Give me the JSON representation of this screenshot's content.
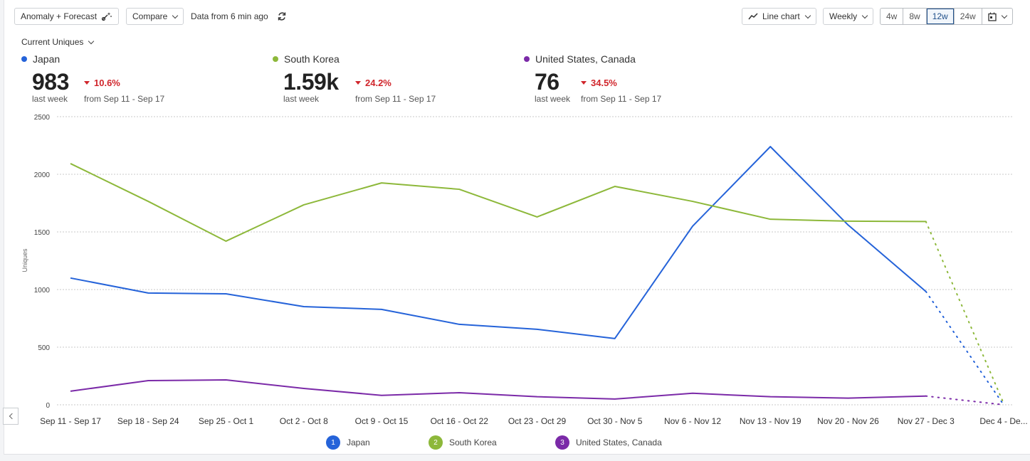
{
  "toolbar": {
    "anomaly_label": "Anomaly + Forecast",
    "anomaly_icon": "magic-wand-icon",
    "compare_label": "Compare",
    "data_status": "Data from 6 min ago",
    "refresh_icon": "refresh-icon",
    "chart_type_label": "Line chart",
    "chart_type_icon": "line-chart-icon",
    "interval_label": "Weekly",
    "ranges": [
      "4w",
      "8w",
      "12w",
      "24w"
    ],
    "active_range": "12w",
    "calendar_icon": "calendar-icon"
  },
  "metric_selector": {
    "label": "Current Uniques"
  },
  "kpis": [
    {
      "name": "Japan",
      "color": "#2563d9",
      "value": "983",
      "sub": "last week",
      "change": "10.6%",
      "direction": "down",
      "from": "from Sep 11 - Sep 17"
    },
    {
      "name": "South Korea",
      "color": "#8db83a",
      "value": "1.59k",
      "sub": "last week",
      "change": "24.2%",
      "direction": "down",
      "from": "from Sep 11 - Sep 17"
    },
    {
      "name": "United States, Canada",
      "color": "#7b2aa8",
      "value": "76",
      "sub": "last week",
      "change": "34.5%",
      "direction": "down",
      "from": "from Sep 11 - Sep 17"
    }
  ],
  "legend": [
    {
      "num": "1",
      "label": "Japan",
      "color": "#2563d9"
    },
    {
      "num": "2",
      "label": "South Korea",
      "color": "#8db83a"
    },
    {
      "num": "3",
      "label": "United States, Canada",
      "color": "#7b2aa8"
    }
  ],
  "chart_data": {
    "type": "line",
    "title": "",
    "xlabel": "",
    "ylabel": "Uniques",
    "ylim": [
      0,
      2500
    ],
    "yticks": [
      0,
      500,
      1000,
      1500,
      2000,
      2500
    ],
    "grid": true,
    "legend_position": "bottom",
    "categories": [
      "Sep 11 - Sep 17",
      "Sep 18 - Sep 24",
      "Sep 25 - Oct 1",
      "Oct 2 - Oct 8",
      "Oct 9 - Oct 15",
      "Oct 16 - Oct 22",
      "Oct 23 - Oct 29",
      "Oct 30 - Nov 5",
      "Nov 6 - Nov 12",
      "Nov 13 - Nov 19",
      "Nov 20 - Nov 26",
      "Nov 27 - Dec 3",
      "Dec 4 - De..."
    ],
    "incomplete_from_index": 11,
    "series": [
      {
        "name": "Japan",
        "color": "#2563d9",
        "values": [
          1100,
          970,
          963,
          852,
          828,
          698,
          655,
          575,
          1550,
          2240,
          1560,
          983,
          0
        ]
      },
      {
        "name": "South Korea",
        "color": "#8db83a",
        "values": [
          2093,
          1765,
          1420,
          1735,
          1925,
          1870,
          1630,
          1895,
          1765,
          1610,
          1593,
          1590,
          12
        ]
      },
      {
        "name": "United States, Canada",
        "color": "#7b2aa8",
        "values": [
          118,
          210,
          216,
          142,
          82,
          105,
          70,
          50,
          100,
          70,
          58,
          76,
          0
        ]
      }
    ]
  }
}
